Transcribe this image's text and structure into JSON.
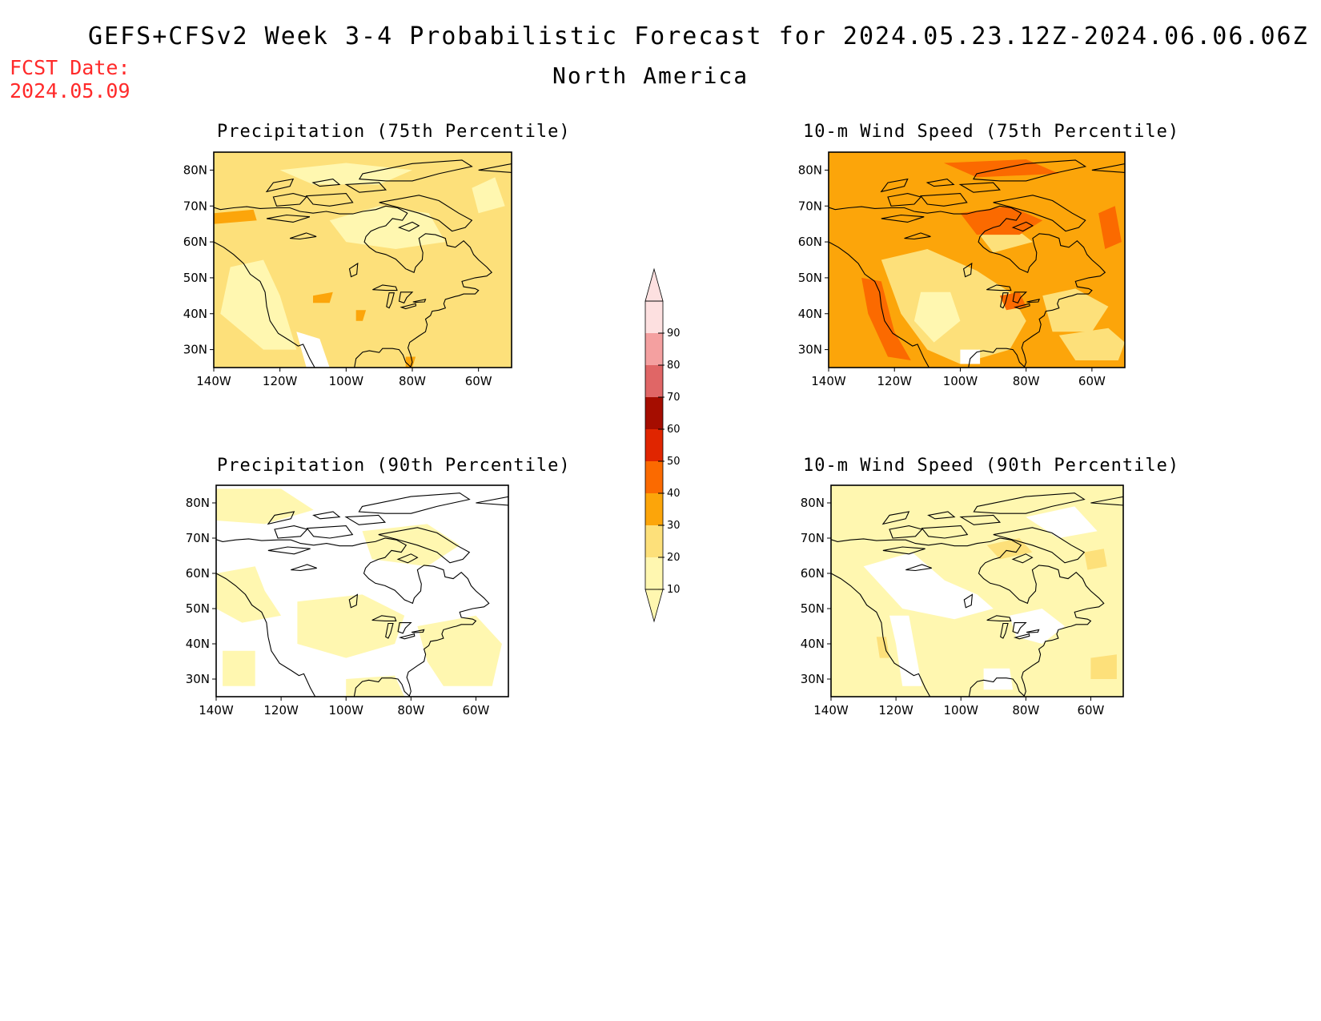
{
  "header": {
    "title": "GEFS+CFSv2 Week 3-4 Probabilistic Forecast for 2024.05.23.12Z-2024.06.06.06Z",
    "region": "North America",
    "fcst_label": "FCST Date:",
    "fcst_date": "2024.05.09"
  },
  "colors": {
    "background": "#ffffff",
    "fcst_text": "#ff2a2a"
  },
  "legend": {
    "levels": [
      10,
      20,
      30,
      40,
      50,
      60,
      70,
      80,
      90
    ],
    "labels": [
      "10",
      "20",
      "30",
      "40",
      "50",
      "60",
      "70",
      "80",
      "90"
    ],
    "colors": [
      "#fff7b0",
      "#fde07a",
      "#fca50a",
      "#fb6a00",
      "#e02500",
      "#a50d00",
      "#e06666",
      "#f4a0a0",
      "#fde0e0"
    ]
  },
  "axes": {
    "lon_ticks": [
      "140W",
      "120W",
      "100W",
      "80W",
      "60W"
    ],
    "lat_ticks": [
      "80N",
      "70N",
      "60N",
      "50N",
      "40N",
      "30N"
    ],
    "lon_range": [
      -140,
      -50
    ],
    "lat_range": [
      25,
      85
    ]
  },
  "panels": [
    {
      "title": "Precipitation (75th Percentile)",
      "base_color": "#fde07a",
      "patches": [
        {
          "color": "#fff7b0",
          "lonlat": [
            [
              -135,
              53
            ],
            [
              -125,
              55
            ],
            [
              -120,
              45
            ],
            [
              -115,
              30
            ],
            [
              -125,
              30
            ],
            [
              -138,
              40
            ]
          ]
        },
        {
          "color": "#fff7b0",
          "lonlat": [
            [
              -105,
              66
            ],
            [
              -90,
              70
            ],
            [
              -75,
              68
            ],
            [
              -70,
              60
            ],
            [
              -85,
              58
            ],
            [
              -100,
              60
            ]
          ]
        },
        {
          "color": "#fff7b0",
          "lonlat": [
            [
              -120,
              80
            ],
            [
              -100,
              82
            ],
            [
              -80,
              80
            ],
            [
              -90,
              76
            ],
            [
              -110,
              76
            ]
          ]
        },
        {
          "color": "#fff7b0",
          "lonlat": [
            [
              -62,
              75
            ],
            [
              -55,
              78
            ],
            [
              -52,
              70
            ],
            [
              -60,
              68
            ]
          ]
        },
        {
          "color": "#ffffff",
          "lonlat": [
            [
              -115,
              35
            ],
            [
              -108,
              33
            ],
            [
              -105,
              25
            ],
            [
              -112,
              25
            ]
          ]
        },
        {
          "color": "#fca50a",
          "lonlat": [
            [
              -140,
              68
            ],
            [
              -128,
              69
            ],
            [
              -127,
              66
            ],
            [
              -140,
              65
            ]
          ]
        },
        {
          "color": "#fca50a",
          "lonlat": [
            [
              -110,
              45
            ],
            [
              -104,
              46
            ],
            [
              -105,
              43
            ],
            [
              -110,
              43
            ]
          ]
        },
        {
          "color": "#fca50a",
          "lonlat": [
            [
              -97,
              41
            ],
            [
              -94,
              41
            ],
            [
              -95,
              38
            ],
            [
              -97,
              38
            ]
          ]
        },
        {
          "color": "#fca50a",
          "lonlat": [
            [
              -82,
              28
            ],
            [
              -79,
              28
            ],
            [
              -80,
              25
            ],
            [
              -82,
              25
            ]
          ]
        }
      ]
    },
    {
      "title": "10-m Wind Speed (75th Percentile)",
      "base_color": "#fca50a",
      "patches": [
        {
          "color": "#fde07a",
          "lonlat": [
            [
              -124,
              55
            ],
            [
              -110,
              58
            ],
            [
              -95,
              52
            ],
            [
              -85,
              46
            ],
            [
              -80,
              38
            ],
            [
              -85,
              30
            ],
            [
              -100,
              26
            ],
            [
              -110,
              30
            ],
            [
              -118,
              40
            ]
          ]
        },
        {
          "color": "#fde07a",
          "lonlat": [
            [
              -75,
              45
            ],
            [
              -65,
              47
            ],
            [
              -55,
              42
            ],
            [
              -60,
              35
            ],
            [
              -72,
              35
            ]
          ]
        },
        {
          "color": "#fde07a",
          "lonlat": [
            [
              -95,
              63
            ],
            [
              -85,
              65
            ],
            [
              -78,
              60
            ],
            [
              -90,
              57
            ]
          ]
        },
        {
          "color": "#fde07a",
          "lonlat": [
            [
              -70,
              34
            ],
            [
              -55,
              36
            ],
            [
              -50,
              32
            ],
            [
              -52,
              27
            ],
            [
              -65,
              27
            ]
          ]
        },
        {
          "color": "#fff7b0",
          "lonlat": [
            [
              -112,
              46
            ],
            [
              -103,
              46
            ],
            [
              -100,
              38
            ],
            [
              -108,
              32
            ],
            [
              -114,
              38
            ]
          ]
        },
        {
          "color": "#fb6a00",
          "lonlat": [
            [
              -130,
              50
            ],
            [
              -124,
              49
            ],
            [
              -120,
              35
            ],
            [
              -115,
              27
            ],
            [
              -122,
              28
            ],
            [
              -128,
              40
            ]
          ]
        },
        {
          "color": "#fb6a00",
          "lonlat": [
            [
              -100,
              68
            ],
            [
              -85,
              70
            ],
            [
              -75,
              66
            ],
            [
              -82,
              62
            ],
            [
              -95,
              62
            ]
          ]
        },
        {
          "color": "#fb6a00",
          "lonlat": [
            [
              -88,
              45
            ],
            [
              -82,
              46
            ],
            [
              -80,
              42
            ],
            [
              -86,
              41
            ]
          ]
        },
        {
          "color": "#fb6a00",
          "lonlat": [
            [
              -58,
              68
            ],
            [
              -53,
              70
            ],
            [
              -51,
              60
            ],
            [
              -56,
              58
            ]
          ]
        },
        {
          "color": "#fb6a00",
          "lonlat": [
            [
              -105,
              82
            ],
            [
              -80,
              83
            ],
            [
              -70,
              79
            ],
            [
              -95,
              78
            ]
          ]
        },
        {
          "color": "#ffffff",
          "lonlat": [
            [
              -100,
              30
            ],
            [
              -94,
              30
            ],
            [
              -94,
              26
            ],
            [
              -100,
              26
            ]
          ]
        }
      ]
    },
    {
      "title": "Precipitation (90th Percentile)",
      "base_color": "#ffffff",
      "patches": [
        {
          "color": "#fff7b0",
          "lonlat": [
            [
              -140,
              84
            ],
            [
              -120,
              84
            ],
            [
              -110,
              78
            ],
            [
              -125,
              74
            ],
            [
              -140,
              75
            ]
          ]
        },
        {
          "color": "#fff7b0",
          "lonlat": [
            [
              -140,
              60
            ],
            [
              -128,
              62
            ],
            [
              -125,
              55
            ],
            [
              -120,
              48
            ],
            [
              -132,
              46
            ],
            [
              -140,
              50
            ]
          ]
        },
        {
          "color": "#fff7b0",
          "lonlat": [
            [
              -115,
              52
            ],
            [
              -95,
              54
            ],
            [
              -82,
              48
            ],
            [
              -85,
              40
            ],
            [
              -100,
              36
            ],
            [
              -115,
              40
            ]
          ]
        },
        {
          "color": "#fff7b0",
          "lonlat": [
            [
              -78,
              45
            ],
            [
              -60,
              48
            ],
            [
              -52,
              40
            ],
            [
              -55,
              28
            ],
            [
              -70,
              28
            ],
            [
              -75,
              35
            ]
          ]
        },
        {
          "color": "#fff7b0",
          "lonlat": [
            [
              -95,
              72
            ],
            [
              -75,
              74
            ],
            [
              -65,
              68
            ],
            [
              -75,
              62
            ],
            [
              -92,
              64
            ]
          ]
        },
        {
          "color": "#fff7b0",
          "lonlat": [
            [
              -138,
              38
            ],
            [
              -128,
              38
            ],
            [
              -128,
              28
            ],
            [
              -138,
              28
            ]
          ]
        },
        {
          "color": "#fff7b0",
          "lonlat": [
            [
              -100,
              30
            ],
            [
              -85,
              31
            ],
            [
              -82,
              25
            ],
            [
              -100,
              25
            ]
          ]
        }
      ]
    },
    {
      "title": "10-m Wind Speed (90th Percentile)",
      "base_color": "#fff7b0",
      "patches": [
        {
          "color": "#ffffff",
          "lonlat": [
            [
              -130,
              62
            ],
            [
              -115,
              66
            ],
            [
              -105,
              58
            ],
            [
              -95,
              54
            ],
            [
              -90,
              50
            ],
            [
              -102,
              47
            ],
            [
              -118,
              50
            ]
          ]
        },
        {
          "color": "#ffffff",
          "lonlat": [
            [
              -85,
              48
            ],
            [
              -75,
              50
            ],
            [
              -68,
              45
            ],
            [
              -75,
              40
            ],
            [
              -83,
              42
            ]
          ]
        },
        {
          "color": "#ffffff",
          "lonlat": [
            [
              -122,
              48
            ],
            [
              -116,
              48
            ],
            [
              -114,
              38
            ],
            [
              -112,
              28
            ],
            [
              -118,
              28
            ],
            [
              -120,
              40
            ]
          ]
        },
        {
          "color": "#ffffff",
          "lonlat": [
            [
              -93,
              33
            ],
            [
              -85,
              33
            ],
            [
              -84,
              27
            ],
            [
              -93,
              27
            ]
          ]
        },
        {
          "color": "#ffffff",
          "lonlat": [
            [
              -80,
              76
            ],
            [
              -65,
              79
            ],
            [
              -58,
              72
            ],
            [
              -70,
              70
            ]
          ]
        },
        {
          "color": "#fde07a",
          "lonlat": [
            [
              -126,
              42
            ],
            [
              -123,
              42
            ],
            [
              -122,
              36
            ],
            [
              -125,
              36
            ]
          ]
        },
        {
          "color": "#fde07a",
          "lonlat": [
            [
              -92,
              68
            ],
            [
              -82,
              70
            ],
            [
              -78,
              66
            ],
            [
              -88,
              64
            ]
          ]
        },
        {
          "color": "#fde07a",
          "lonlat": [
            [
              -62,
              66
            ],
            [
              -56,
              67
            ],
            [
              -55,
              62
            ],
            [
              -61,
              61
            ]
          ]
        },
        {
          "color": "#fde07a",
          "lonlat": [
            [
              -60,
              36
            ],
            [
              -52,
              37
            ],
            [
              -52,
              30
            ],
            [
              -60,
              30
            ]
          ]
        }
      ]
    }
  ]
}
